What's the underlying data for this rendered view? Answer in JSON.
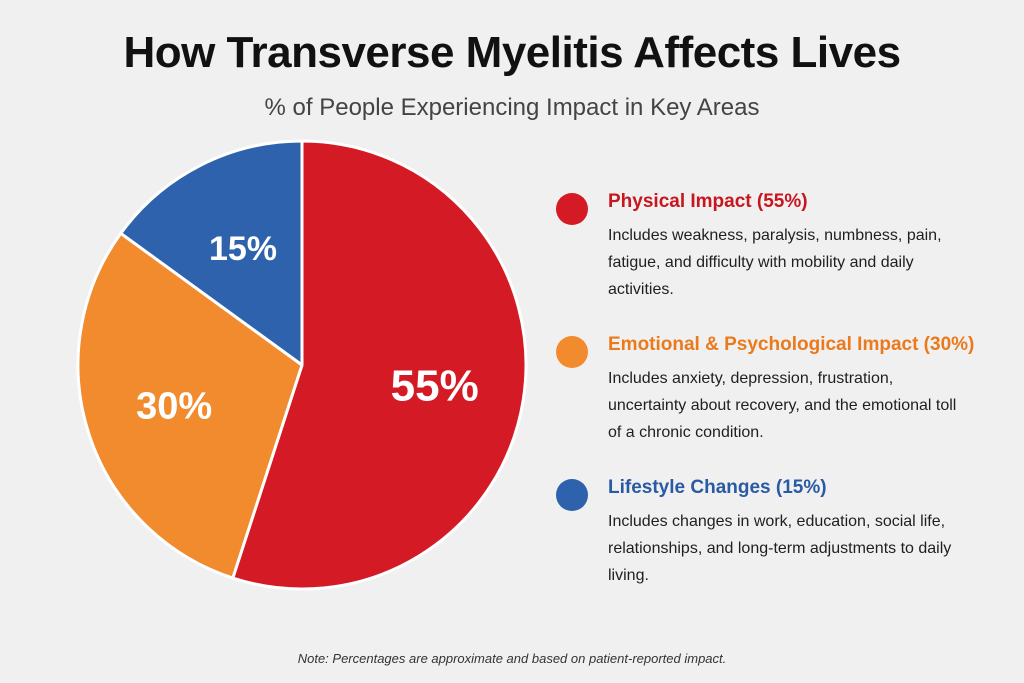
{
  "header": {
    "title": "How Transverse Myelitis Affects Lives",
    "subtitle": "% of People Experiencing Impact in Key Areas"
  },
  "chart_data": {
    "type": "pie",
    "title": "How Transverse Myelitis Affects Lives",
    "subtitle": "% of People Experiencing Impact in Key Areas",
    "start": "12 o'clock",
    "direction": "clockwise",
    "legend_position": "right",
    "slices": [
      {
        "name": "Physical Impact (55%)",
        "value": 55,
        "label": "55%",
        "color": "#d41a24"
      },
      {
        "name": "Emotional & Psychological Impact (30%)",
        "value": 30,
        "label": "30%",
        "color": "#f28a2e"
      },
      {
        "name": "Lifestyle Changes (15%)",
        "value": 15,
        "label": "15%",
        "color": "#2e62ad"
      }
    ]
  },
  "legend": {
    "items": [
      {
        "title": "Physical Impact (55%)",
        "desc": "Includes weakness, paralysis, numbness, pain, fatigue, and difficulty with mobility and daily activities.",
        "color": "#d41a24",
        "title_color": "#c8161f"
      },
      {
        "title": "Emotional & Psychological Impact (30%)",
        "desc": "Includes anxiety, depression, frustration, uncertainty about recovery, and the emotional toll of a chronic condition.",
        "color": "#f28a2e",
        "title_color": "#ea7a1c"
      },
      {
        "title": "Lifestyle Changes (15%)",
        "desc": "Includes changes in work, education, social life, relationships, and long-term adjustments to daily living.",
        "color": "#2e62ad",
        "title_color": "#2a5aa3"
      }
    ]
  },
  "footer": {
    "note": "Note: Percentages are approximate and based on patient-reported impact."
  }
}
